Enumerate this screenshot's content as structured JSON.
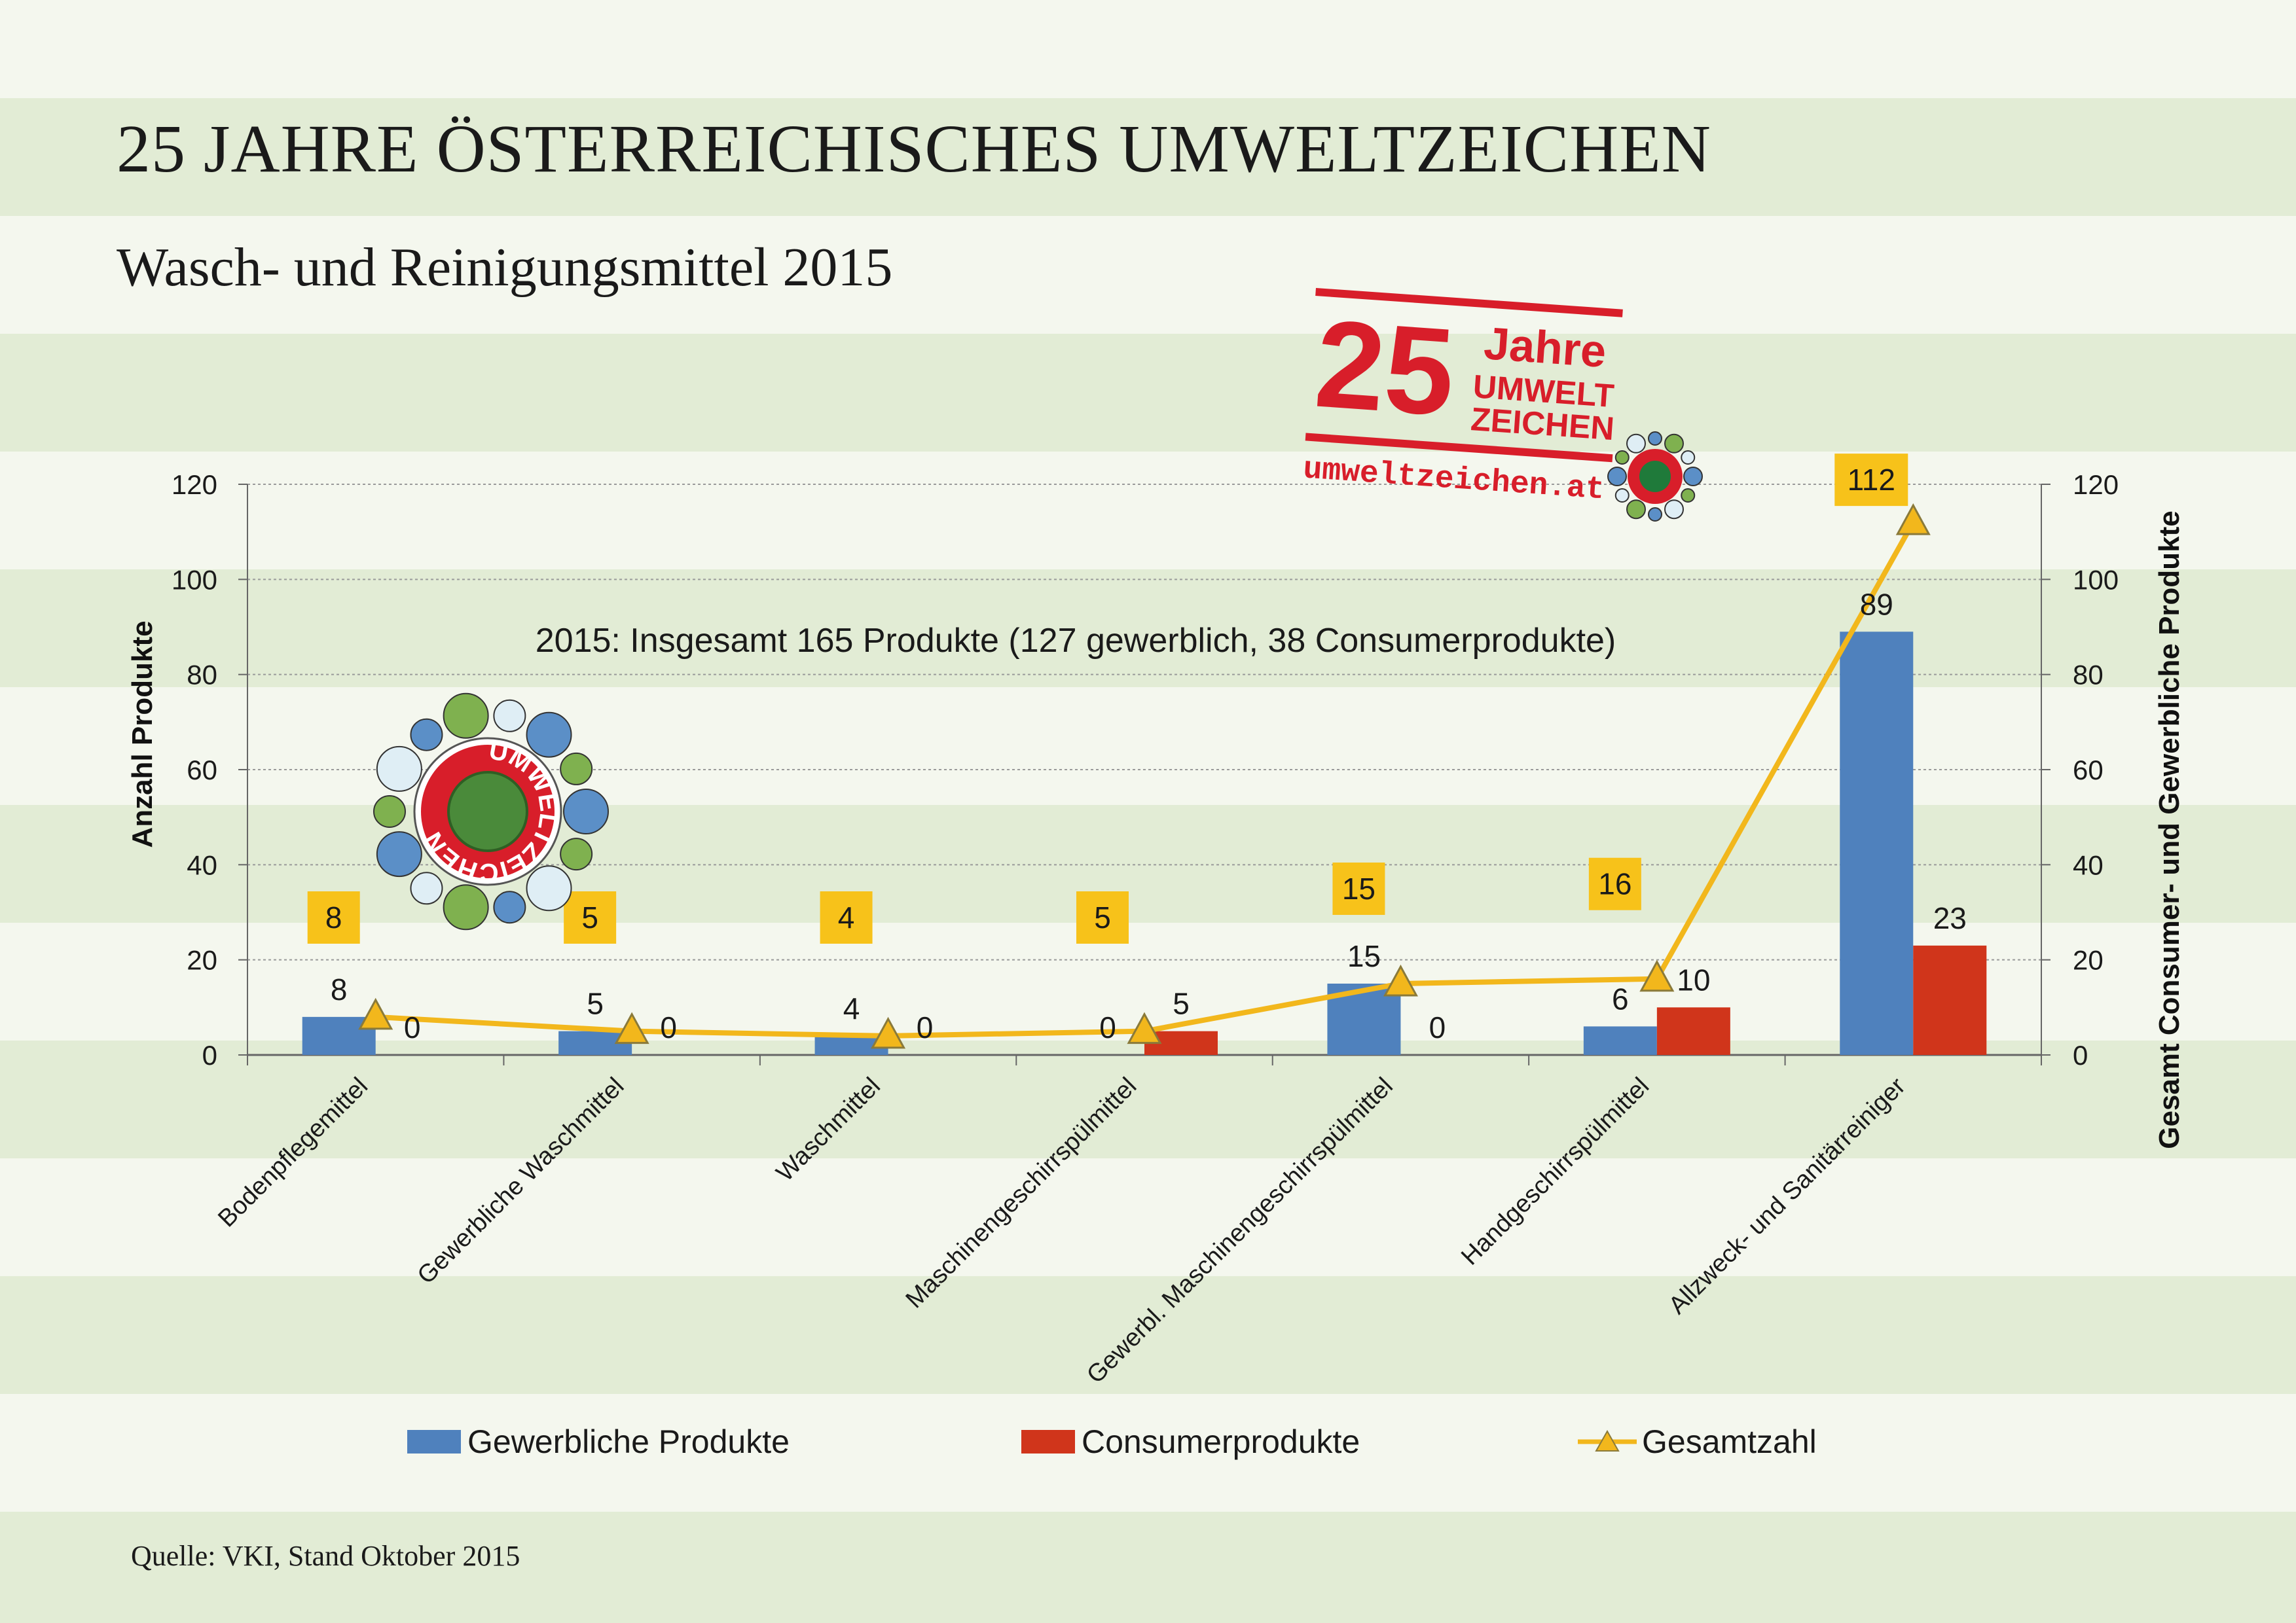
{
  "page": {
    "title": "25 JAHRE ÖSTERREICHISCHES UMWELTZEICHEN",
    "subtitle": "Wasch- und Reinigungsmittel 2015",
    "source": "Quelle: VKI, Stand Oktober 2015"
  },
  "colors": {
    "background": "#f4f7ee",
    "stripe": "#e2ecd5",
    "gewerblich": "#4f81bd",
    "consumer": "#d0351b",
    "gesamt_line": "#f2b71c",
    "gesamt_label_box": "#f7c21a",
    "logo_red": "#d81e2a",
    "logo_green": "#4a8a3a"
  },
  "logos": {
    "umweltzeichen_text": "UMWELTZEICHEN",
    "stamp_number": "25",
    "stamp_word": "Jahre",
    "stamp_line1": "UMWELT",
    "stamp_line2": "ZEICHEN",
    "stamp_url": "umweltzeichen.at"
  },
  "chart_data": {
    "type": "bar",
    "annotation": "2015: Insgesamt 165 Produkte (127 gewerblich, 38 Consumerprodukte)",
    "ylabel": "Anzahl Produkte",
    "y2label": "Gesamt Consumer- und Gewerbliche Produkte",
    "ylim": [
      0,
      120
    ],
    "y2lim": [
      0,
      120
    ],
    "yticks": [
      "0",
      "20",
      "40",
      "60",
      "80",
      "100",
      "120"
    ],
    "grid": true,
    "legend_position": "bottom",
    "categories": [
      "Bodenpflegemittel",
      "Gewerbliche Waschmittel",
      "Waschmittel",
      "Maschinengeschirrspülmittel",
      "Gewerbl. Maschinengeschirrspülmittel",
      "Handgeschirrspülmittel",
      "Allzweck- und Sanitärreiniger"
    ],
    "series": [
      {
        "name": "Gewerbliche Produkte",
        "kind": "bar",
        "values": [
          8,
          5,
          4,
          0,
          15,
          6,
          89
        ]
      },
      {
        "name": "Consumerprodukte",
        "kind": "bar",
        "values": [
          0,
          0,
          0,
          5,
          0,
          10,
          23
        ]
      },
      {
        "name": "Gesamtzahl",
        "kind": "line",
        "axis": "right",
        "values": [
          8,
          5,
          4,
          5,
          15,
          16,
          112
        ]
      }
    ]
  }
}
